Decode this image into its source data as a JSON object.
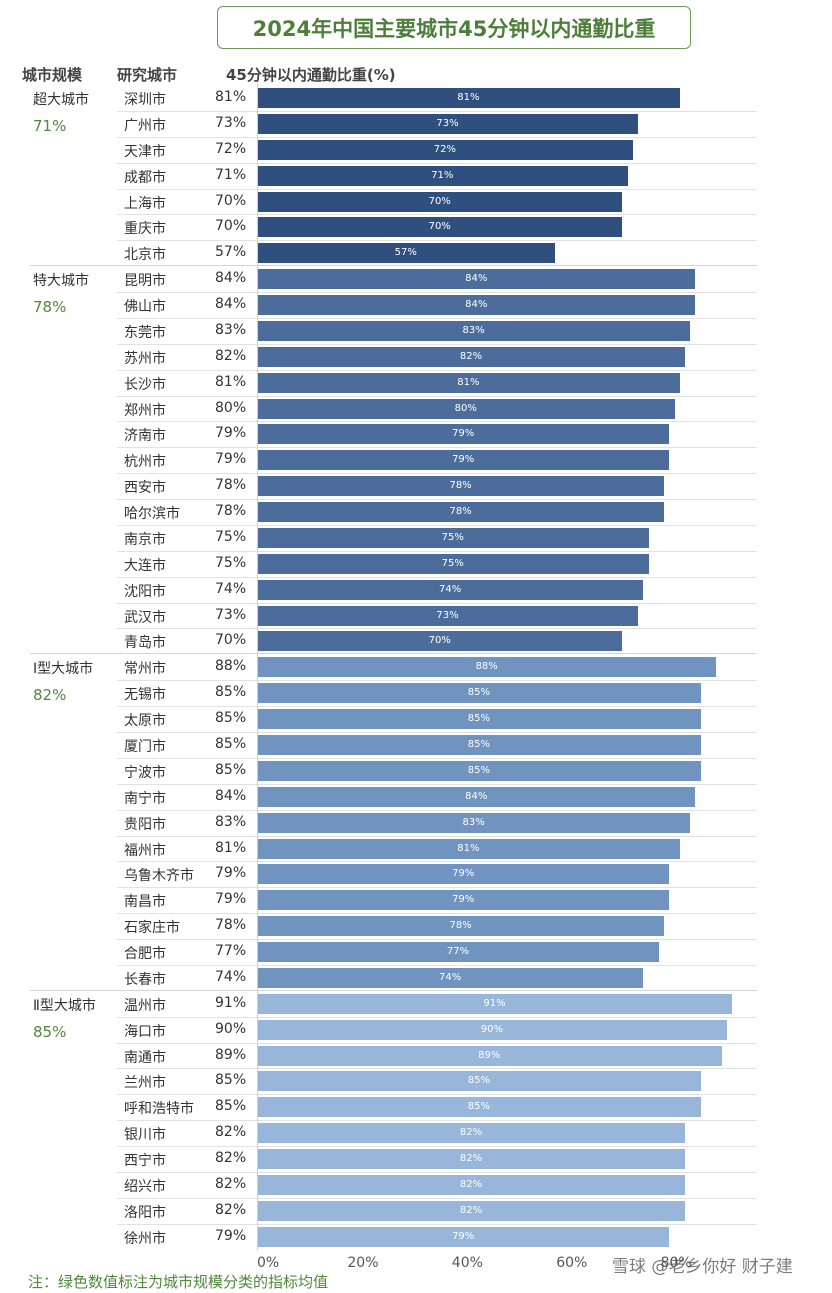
{
  "title": "2024年中国主要城市45分钟以内通勤比重",
  "headers": {
    "scale": "城市规模",
    "city": "研究城市",
    "metric": "45分钟以内通勤比重(%)"
  },
  "footnote": "注：绿色数值标注为城市规模分类的指标均值",
  "watermark": "雪球 @老乡你好 财子建",
  "colors": {
    "super": "#2f4f7e",
    "mega": "#4c6d9b",
    "type1": "#7093bf",
    "type2": "#97b6da",
    "title_green": "#4e7f3a"
  },
  "chart_data": {
    "type": "bar",
    "orientation": "horizontal",
    "title": "2024年中国主要城市45分钟以内通勤比重",
    "xlabel": "45分钟以内通勤比重(%)",
    "xlim": [
      0,
      100
    ],
    "x_ticks": [
      "0%",
      "20%",
      "40%",
      "60%",
      "80%"
    ],
    "groups": [
      {
        "name": "超大城市",
        "avg": "71%",
        "color_key": "super",
        "cities": [
          "深圳市",
          "广州市",
          "天津市",
          "成都市",
          "上海市",
          "重庆市",
          "北京市"
        ],
        "values": [
          81,
          73,
          72,
          71,
          70,
          70,
          57
        ]
      },
      {
        "name": "特大城市",
        "avg": "78%",
        "color_key": "mega",
        "cities": [
          "昆明市",
          "佛山市",
          "东莞市",
          "苏州市",
          "长沙市",
          "郑州市",
          "济南市",
          "杭州市",
          "西安市",
          "哈尔滨市",
          "南京市",
          "大连市",
          "沈阳市",
          "武汉市",
          "青岛市"
        ],
        "values": [
          84,
          84,
          83,
          82,
          81,
          80,
          79,
          79,
          78,
          78,
          75,
          75,
          74,
          73,
          70
        ]
      },
      {
        "name": "Ⅰ型大城市",
        "avg": "82%",
        "color_key": "type1",
        "cities": [
          "常州市",
          "无锡市",
          "太原市",
          "厦门市",
          "宁波市",
          "南宁市",
          "贵阳市",
          "福州市",
          "乌鲁木齐市",
          "南昌市",
          "石家庄市",
          "合肥市",
          "长春市"
        ],
        "values": [
          88,
          85,
          85,
          85,
          85,
          84,
          83,
          81,
          79,
          79,
          78,
          77,
          74
        ]
      },
      {
        "name": "Ⅱ型大城市",
        "avg": "85%",
        "color_key": "type2",
        "cities": [
          "温州市",
          "海口市",
          "南通市",
          "兰州市",
          "呼和浩特市",
          "银川市",
          "西宁市",
          "绍兴市",
          "洛阳市",
          "徐州市"
        ],
        "values": [
          91,
          90,
          89,
          85,
          85,
          82,
          82,
          82,
          82,
          79
        ]
      }
    ]
  }
}
